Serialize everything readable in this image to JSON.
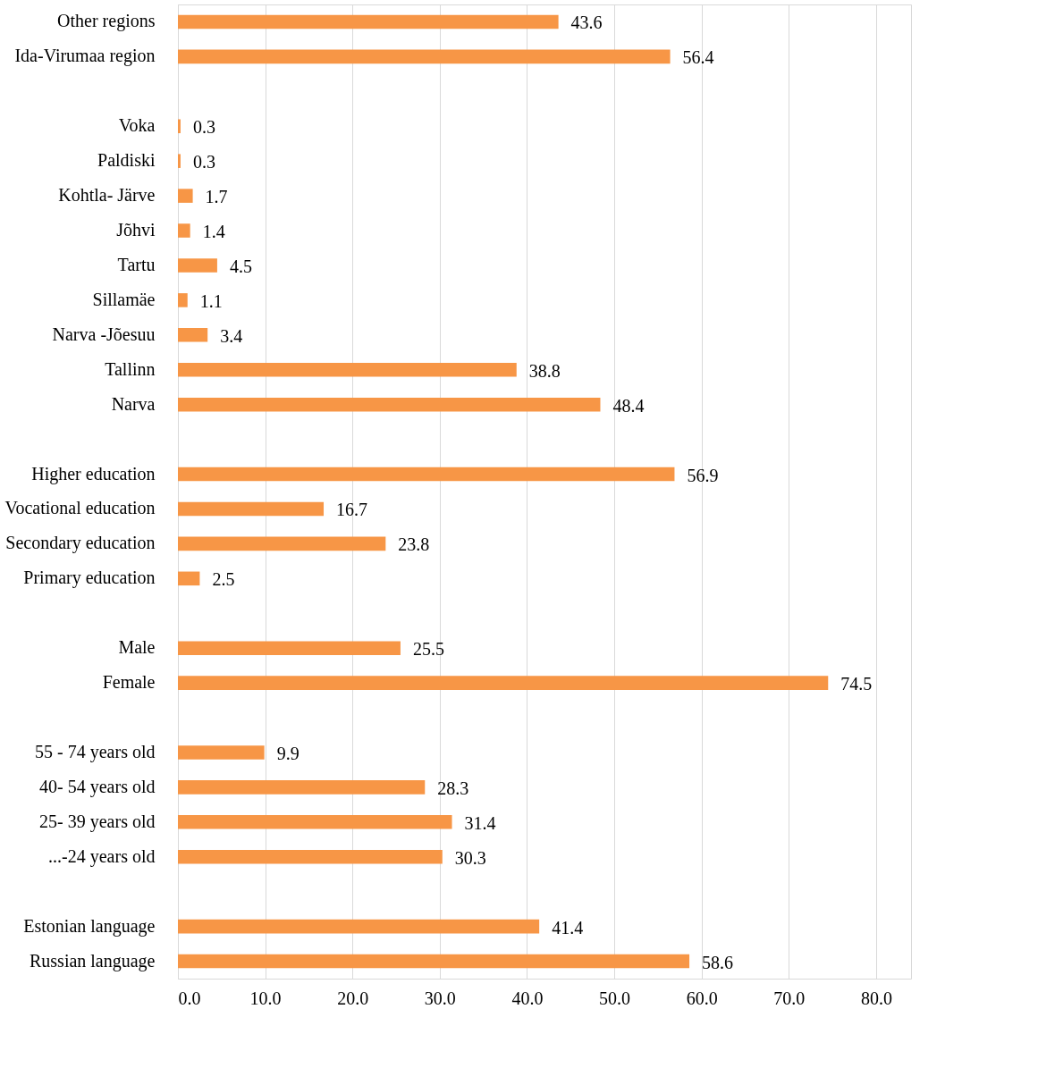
{
  "chart_data": {
    "type": "bar",
    "orientation": "horizontal",
    "color": "#f79646",
    "data_labels": true,
    "grid": "x",
    "categories": [
      "Other regions",
      "Ida-Virumaa region",
      null,
      "Voka",
      "Paldiski",
      "Kohtla- Järve",
      "Jõhvi",
      "Tartu",
      "Sillamäe",
      "Narva -Jõesuu",
      "Tallinn",
      "Narva",
      null,
      "Higher education",
      "Vocational education",
      "Secondary education",
      "Primary education",
      null,
      "Male",
      "Female",
      null,
      "55 - 74 years old",
      "40- 54 years old",
      "25- 39 years old",
      "...-24 years old",
      null,
      "Estonian language",
      "Russian language"
    ],
    "values": [
      43.6,
      56.4,
      null,
      0.3,
      0.3,
      1.7,
      1.4,
      4.5,
      1.1,
      3.4,
      38.8,
      48.4,
      null,
      56.9,
      16.7,
      23.8,
      2.5,
      null,
      25.5,
      74.5,
      null,
      9.9,
      28.3,
      31.4,
      30.3,
      null,
      41.4,
      58.6
    ],
    "xlim": [
      0,
      84
    ],
    "xticks": [
      {
        "value": 0,
        "label": "0.0"
      },
      {
        "value": 10,
        "label": "10.0"
      },
      {
        "value": 20,
        "label": "20.0"
      },
      {
        "value": 30,
        "label": "30.0"
      },
      {
        "value": 40,
        "label": "40.0"
      },
      {
        "value": 50,
        "label": "50.0"
      },
      {
        "value": 60,
        "label": "60.0"
      },
      {
        "value": 70,
        "label": "70.0"
      },
      {
        "value": 80,
        "label": "80.0"
      }
    ]
  }
}
